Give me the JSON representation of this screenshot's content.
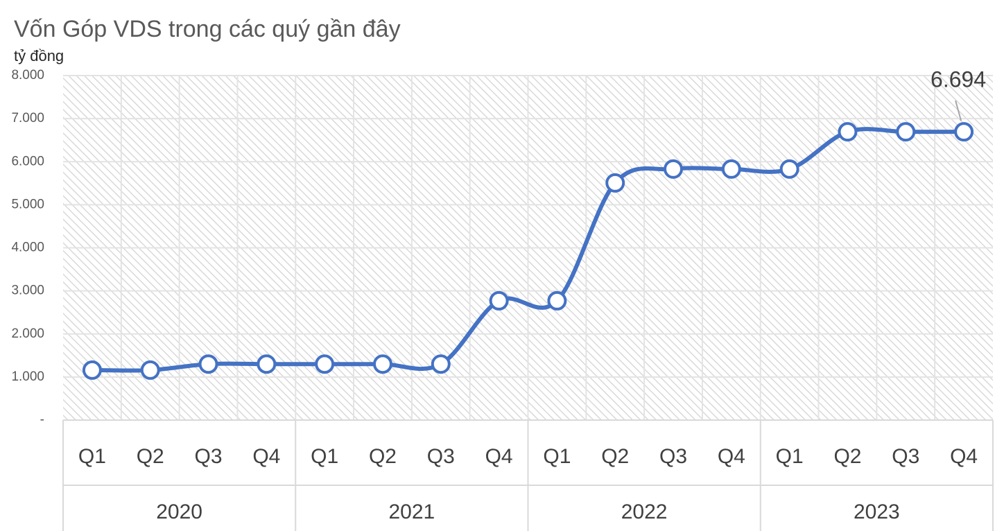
{
  "chart_data": {
    "type": "line",
    "title": "Vốn Góp VDS trong các quý gần đây",
    "y_label": "tỷ đồng",
    "categories": [
      "Q1",
      "Q2",
      "Q3",
      "Q4",
      "Q1",
      "Q2",
      "Q3",
      "Q4",
      "Q1",
      "Q2",
      "Q3",
      "Q4",
      "Q1",
      "Q2",
      "Q3",
      "Q4"
    ],
    "groups": [
      "2020",
      "2021",
      "2022",
      "2023"
    ],
    "series": [
      {
        "name": "Vốn Góp",
        "color": "#4472c4",
        "values": [
          1160,
          1160,
          1300,
          1300,
          1300,
          1300,
          1300,
          2770,
          2770,
          5507,
          5829,
          5829,
          5829,
          6694,
          6694,
          6694
        ],
        "value_labels": [
          null,
          null,
          null,
          null,
          null,
          null,
          null,
          null,
          null,
          null,
          null,
          null,
          null,
          null,
          null,
          "6.694"
        ]
      }
    ],
    "ylim": [
      0,
      8000
    ],
    "yticks": [
      {
        "value": 0,
        "label": "-"
      },
      {
        "value": 1000,
        "label": "1.000"
      },
      {
        "value": 2000,
        "label": "2.000"
      },
      {
        "value": 3000,
        "label": "3.000"
      },
      {
        "value": 4000,
        "label": "4.000"
      },
      {
        "value": 5000,
        "label": "5.000"
      },
      {
        "value": 6000,
        "label": "6.000"
      },
      {
        "value": 7000,
        "label": "7.000"
      },
      {
        "value": 8000,
        "label": "8.000"
      }
    ],
    "grid": true
  }
}
